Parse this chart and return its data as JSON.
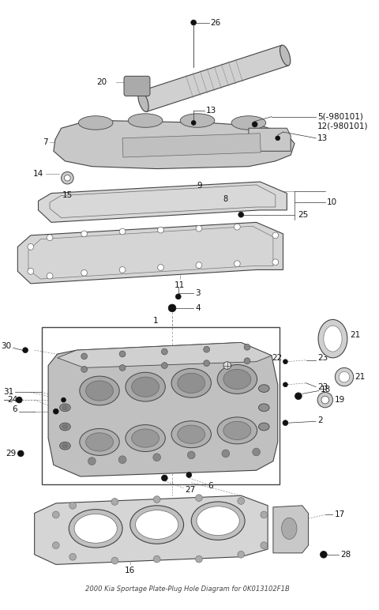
{
  "title": "2000 Kia Sportage Plate-Plug Hole Diagram for 0K013102F1B",
  "bg_color": "#ffffff",
  "fig_width": 4.8,
  "fig_height": 7.72,
  "dpi": 100,
  "parts": {
    "pipe_color": "#c8c8c8",
    "head_color": "#b8b8b8",
    "gasket_color": "#d0d0d0",
    "edge_color": "#444444",
    "line_color": "#333333",
    "label_color": "#111111",
    "dash_color": "#888888"
  }
}
